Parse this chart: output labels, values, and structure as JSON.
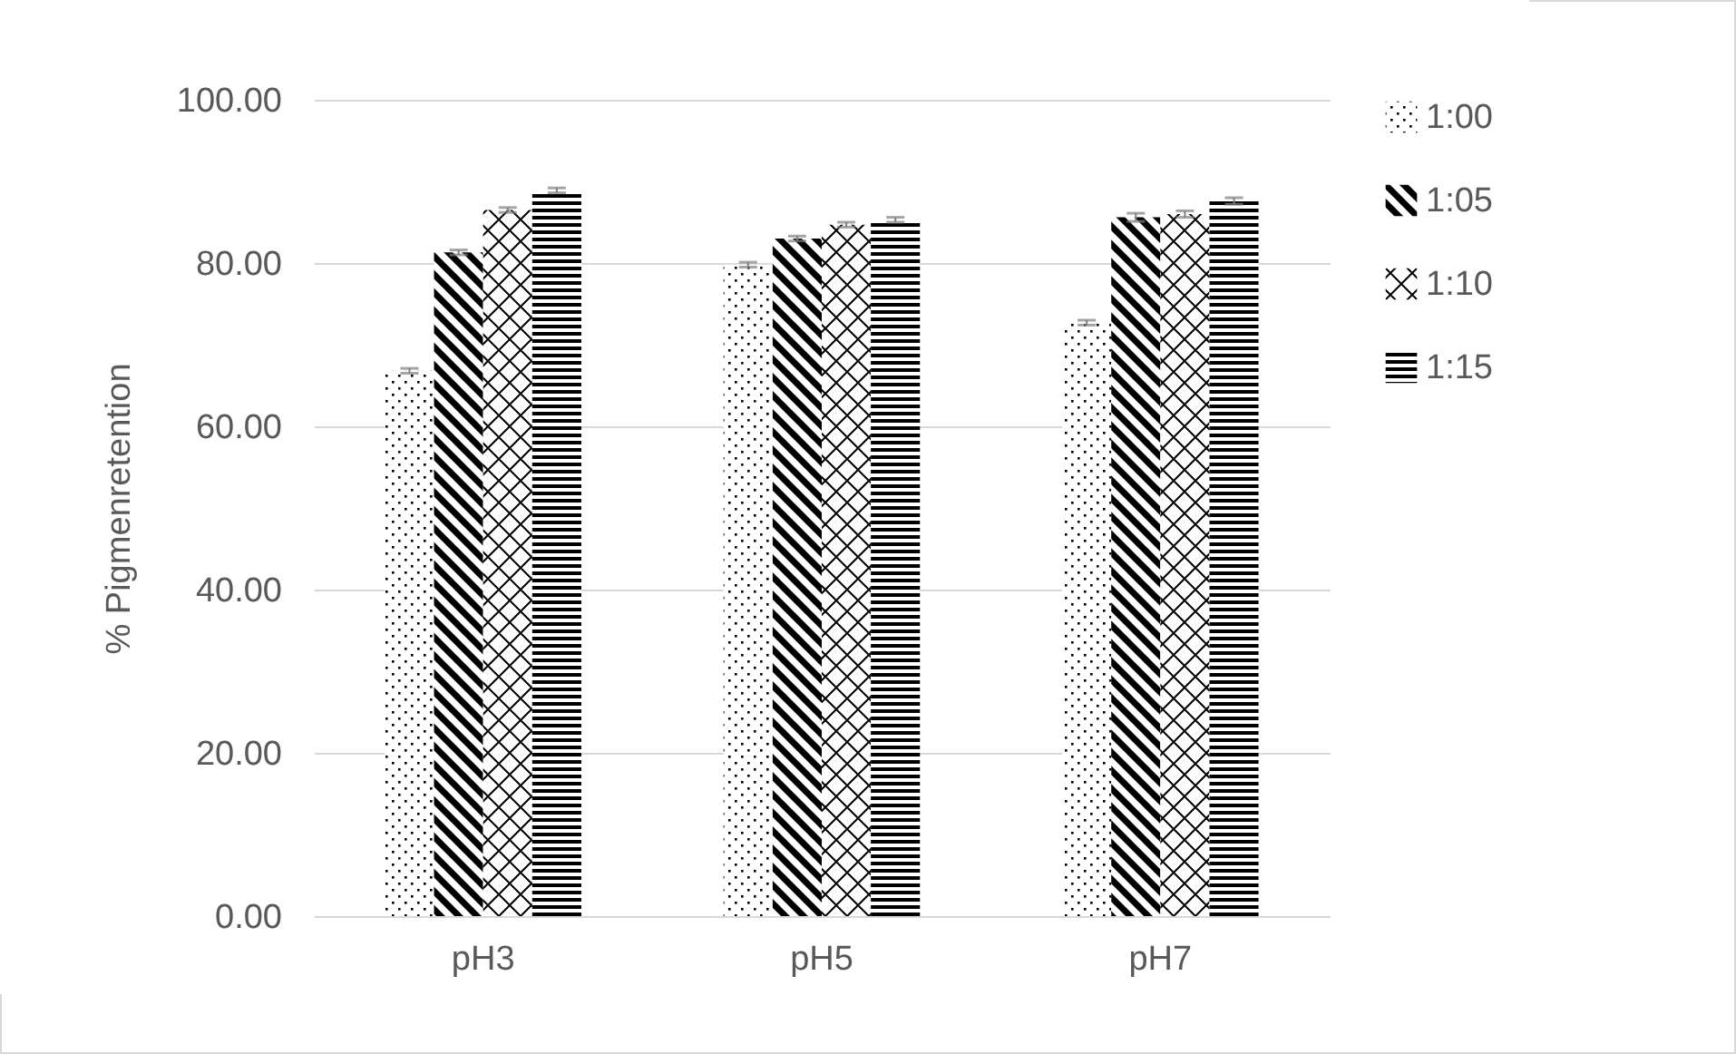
{
  "chart_data": {
    "type": "bar",
    "ylabel": "% Pigmenretention",
    "categories": [
      "pH3",
      "pH5",
      "pH7"
    ],
    "series": [
      {
        "name": "1:00",
        "color": "#000000",
        "values": [
          66.8,
          79.8,
          72.7
        ],
        "errors": [
          0.3,
          0.3,
          0.3
        ]
      },
      {
        "name": "1:05",
        "color": "#000000",
        "values": [
          81.3,
          83.0,
          85.6
        ],
        "errors": [
          0.3,
          0.3,
          0.5
        ]
      },
      {
        "name": "1:10",
        "color": "#000000",
        "values": [
          86.5,
          84.7,
          86.0
        ],
        "errors": [
          0.3,
          0.3,
          0.4
        ]
      },
      {
        "name": "1:15",
        "color": "#000000",
        "values": [
          88.9,
          85.3,
          87.6
        ],
        "errors": [
          0.3,
          0.3,
          0.4
        ]
      }
    ],
    "ylim": [
      0,
      100
    ],
    "yticks": [
      {
        "value": 0,
        "label": "0.00"
      },
      {
        "value": 20,
        "label": "20.00"
      },
      {
        "value": 40,
        "label": "40.00"
      },
      {
        "value": 60,
        "label": "60.00"
      },
      {
        "value": 80,
        "label": "80.00"
      },
      {
        "value": 100,
        "label": "100.00"
      }
    ],
    "grid": "y",
    "legend": "right"
  }
}
